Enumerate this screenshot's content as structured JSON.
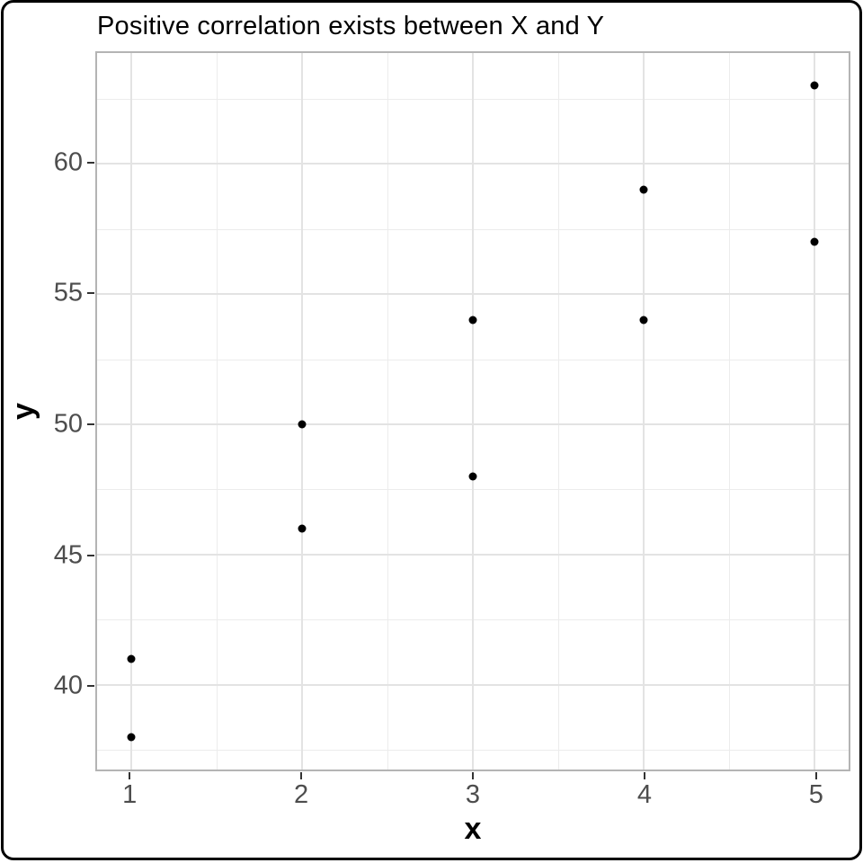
{
  "chart_data": {
    "type": "scatter",
    "title": "Positive correlation exists between X and Y",
    "xlabel": "x",
    "ylabel": "y",
    "points": [
      {
        "x": 1,
        "y": 41
      },
      {
        "x": 1,
        "y": 38
      },
      {
        "x": 2,
        "y": 50
      },
      {
        "x": 2,
        "y": 46
      },
      {
        "x": 3,
        "y": 54
      },
      {
        "x": 3,
        "y": 48
      },
      {
        "x": 4,
        "y": 59
      },
      {
        "x": 4,
        "y": 54
      },
      {
        "x": 5,
        "y": 63
      },
      {
        "x": 5,
        "y": 57
      }
    ],
    "x_ticks": [
      1,
      2,
      3,
      4,
      5
    ],
    "y_ticks": [
      40,
      45,
      50,
      55,
      60
    ],
    "x_minor_gridlines": [
      1.5,
      2.5,
      3.5,
      4.5
    ],
    "y_minor_gridlines": [
      37.5,
      42.5,
      47.5,
      52.5,
      57.5,
      62.5
    ],
    "xlim": [
      0.8,
      5.2
    ],
    "ylim": [
      36.75,
      64.25
    ],
    "grid": "major+minor",
    "legend": "none",
    "colors": {
      "point": "#000000",
      "grid_major": "#e3e3e3",
      "grid_minor": "#ececec",
      "panel_border": "#b4b4b4",
      "tick_mark": "#333333",
      "tick_label": "#4d4d4d",
      "title": "#000000",
      "outer_frame": "#000000",
      "background": "#ffffff"
    }
  }
}
